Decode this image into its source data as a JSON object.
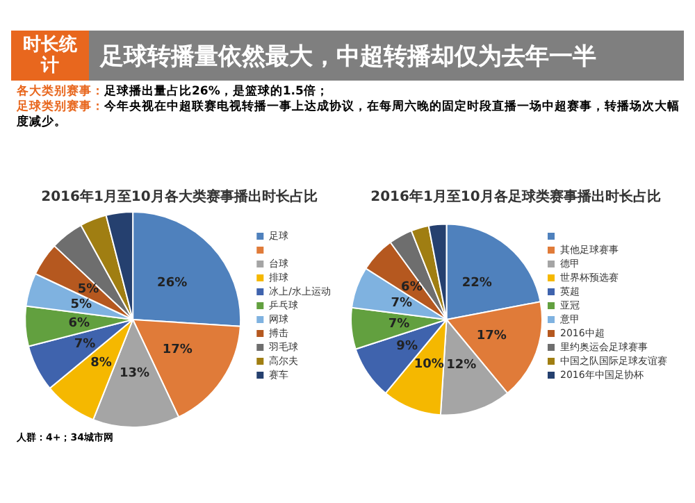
{
  "chart_data": [
    {
      "type": "other",
      "subtitle": "时长统计",
      "title": "足球转播量依然最大，中超转播却仅为去年一半",
      "annotations": [
        "各大类别赛事：足球播出量占比26%，是篮球的1.5倍；",
        "足球类别赛事：今年央视在中超联赛电视转播一事上达成协议，在每周六晚的固定时段直播一场中超赛事，转播场次大幅度减少。"
      ]
    },
    {
      "type": "pie",
      "title": "2016年1月至10月各大类赛事播出时长占比",
      "categories": [
        "足球",
        null,
        "台球",
        "排球",
        "冰上/水上运动",
        "乒乓球",
        "网球",
        "搏击",
        "羽毛球",
        "高尔夫",
        "赛车"
      ],
      "values": [
        26,
        17,
        13,
        8,
        7,
        6,
        5,
        5,
        5,
        4,
        4
      ],
      "colors": [
        "#4f81bd",
        "#e07b39",
        "#a5a5a5",
        "#f5b800",
        "#3f63ad",
        "#62a03f",
        "#7fb2e0",
        "#b5581f",
        "#6e6e6e",
        "#a07e12",
        "#25406f"
      ],
      "value_labels": [
        "26%",
        "17%",
        "13%",
        "8%",
        "7%",
        "6%",
        "5%",
        "5%",
        null,
        null,
        null
      ],
      "legend": "right",
      "annotations": [
        "人群：4+；34城市网"
      ]
    },
    {
      "type": "pie",
      "title": "2016年1月至10月各足球类赛事播出时长占比",
      "categories": [
        null,
        "其他足球赛事",
        "德甲",
        "世界杯预选赛",
        "英超",
        "亚冠",
        "意甲",
        "2016中超",
        "里约奥运会足球赛事",
        "中国之队国际足球友谊赛",
        "2016年中国足协杯"
      ],
      "values": [
        22,
        17,
        12,
        10,
        9,
        7,
        7,
        6,
        4,
        3,
        3
      ],
      "colors": [
        "#4f81bd",
        "#e07b39",
        "#a5a5a5",
        "#f5b800",
        "#3f63ad",
        "#62a03f",
        "#7fb2e0",
        "#b5581f",
        "#6e6e6e",
        "#a07e12",
        "#25406f"
      ],
      "value_labels": [
        "22%",
        "17%",
        "12%",
        "10%",
        "9%",
        "7%",
        "7%",
        "6%",
        null,
        null,
        null
      ],
      "legend": "right"
    }
  ]
}
